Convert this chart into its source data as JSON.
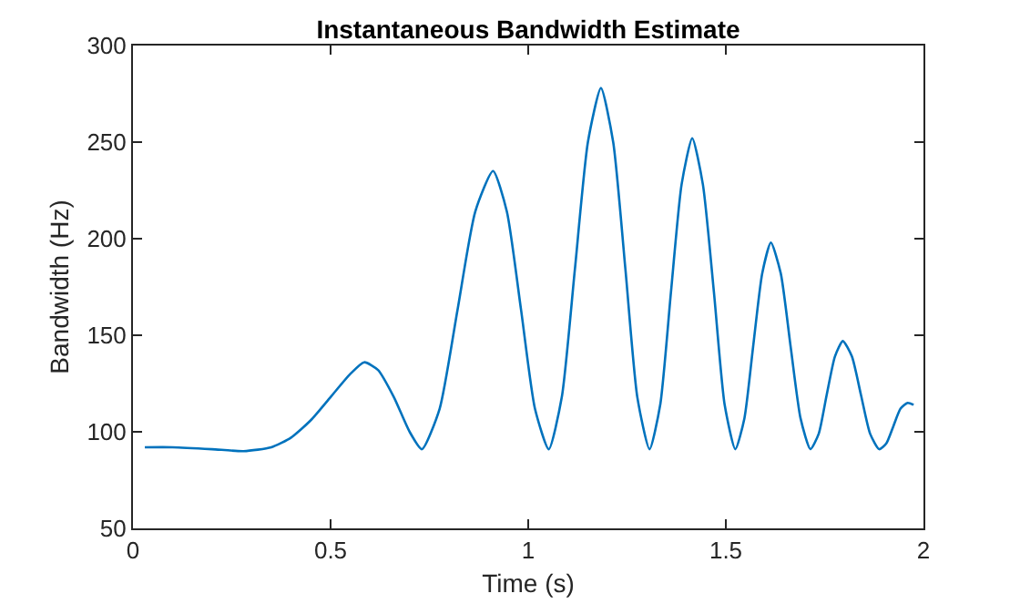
{
  "chart_data": {
    "type": "line",
    "title": "Instantaneous Bandwidth Estimate",
    "xlabel": "Time (s)",
    "ylabel": "Bandwidth (Hz)",
    "x": [
      0.03,
      0.1,
      0.2,
      0.28,
      0.35,
      0.4,
      0.45,
      0.5,
      0.55,
      0.585,
      0.62,
      0.66,
      0.7,
      0.731,
      0.776,
      0.821,
      0.866,
      0.911,
      0.946,
      0.982,
      1.017,
      1.052,
      1.085,
      1.118,
      1.151,
      1.184,
      1.215,
      1.246,
      1.276,
      1.307,
      1.334,
      1.361,
      1.388,
      1.415,
      1.442,
      1.47,
      1.497,
      1.524,
      1.547,
      1.569,
      1.592,
      1.614,
      1.639,
      1.664,
      1.689,
      1.714,
      1.735,
      1.755,
      1.776,
      1.796,
      1.819,
      1.842,
      1.865,
      1.888,
      1.906,
      1.924,
      1.942,
      1.96,
      1.975
    ],
    "series": [
      {
        "color": "#0072bd",
        "values": [
          92,
          92,
          91,
          90,
          92,
          97,
          106,
          118,
          130,
          136,
          132,
          118,
          100,
          91,
          112,
          163,
          214,
          235,
          214,
          163,
          112,
          91,
          118,
          184,
          250,
          278,
          250,
          184,
          118,
          91,
          114,
          172,
          228,
          252,
          228,
          172,
          114,
          91,
          107,
          144,
          182,
          198,
          182,
          144,
          107,
          91,
          99,
          119,
          139,
          147,
          139,
          119,
          99,
          91,
          94,
          103,
          112,
          115,
          114
        ]
      }
    ],
    "xlim": [
      0,
      2
    ],
    "xticks": [
      0,
      0.5,
      1,
      1.5,
      2
    ],
    "ylim": [
      50,
      300
    ],
    "yticks": [
      50,
      100,
      150,
      200,
      250,
      300
    ],
    "grid": false,
    "marker": "none",
    "line_style": "solid"
  }
}
